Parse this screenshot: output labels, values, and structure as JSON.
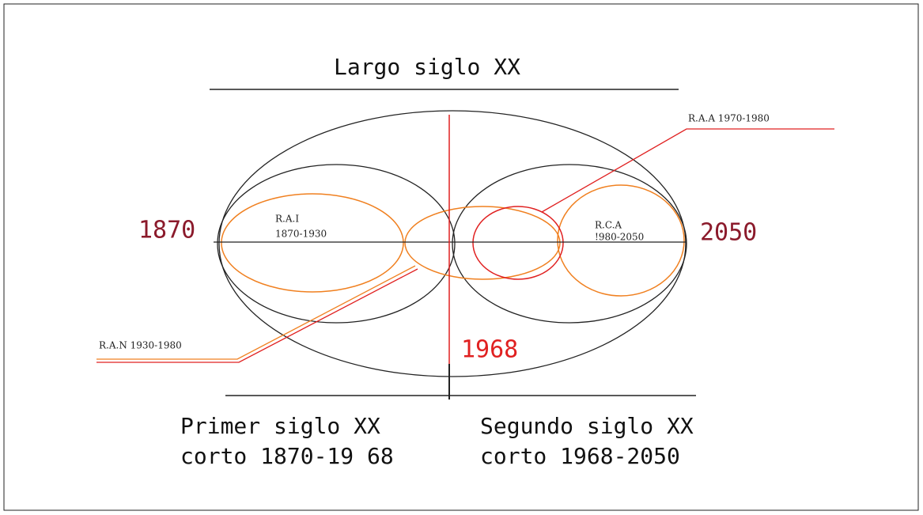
{
  "title": "Largo siglo XX",
  "axis": {
    "start": "1870",
    "end": "2050",
    "split": "1968"
  },
  "circles": {
    "rai": {
      "name": "R.A.I",
      "period": "1870-1930"
    },
    "rca": {
      "name": "R.C.A",
      "period": "!980-2050"
    },
    "raa": {
      "label": "R.A.A 1970-1980"
    },
    "ran": {
      "label": "R.A.N 1930-1980"
    }
  },
  "halves": [
    {
      "line1": "Primer siglo XX",
      "line2": "corto 1870-19 68"
    },
    {
      "line1": "Segundo siglo XX",
      "line2": "corto 1968-2050"
    }
  ]
}
